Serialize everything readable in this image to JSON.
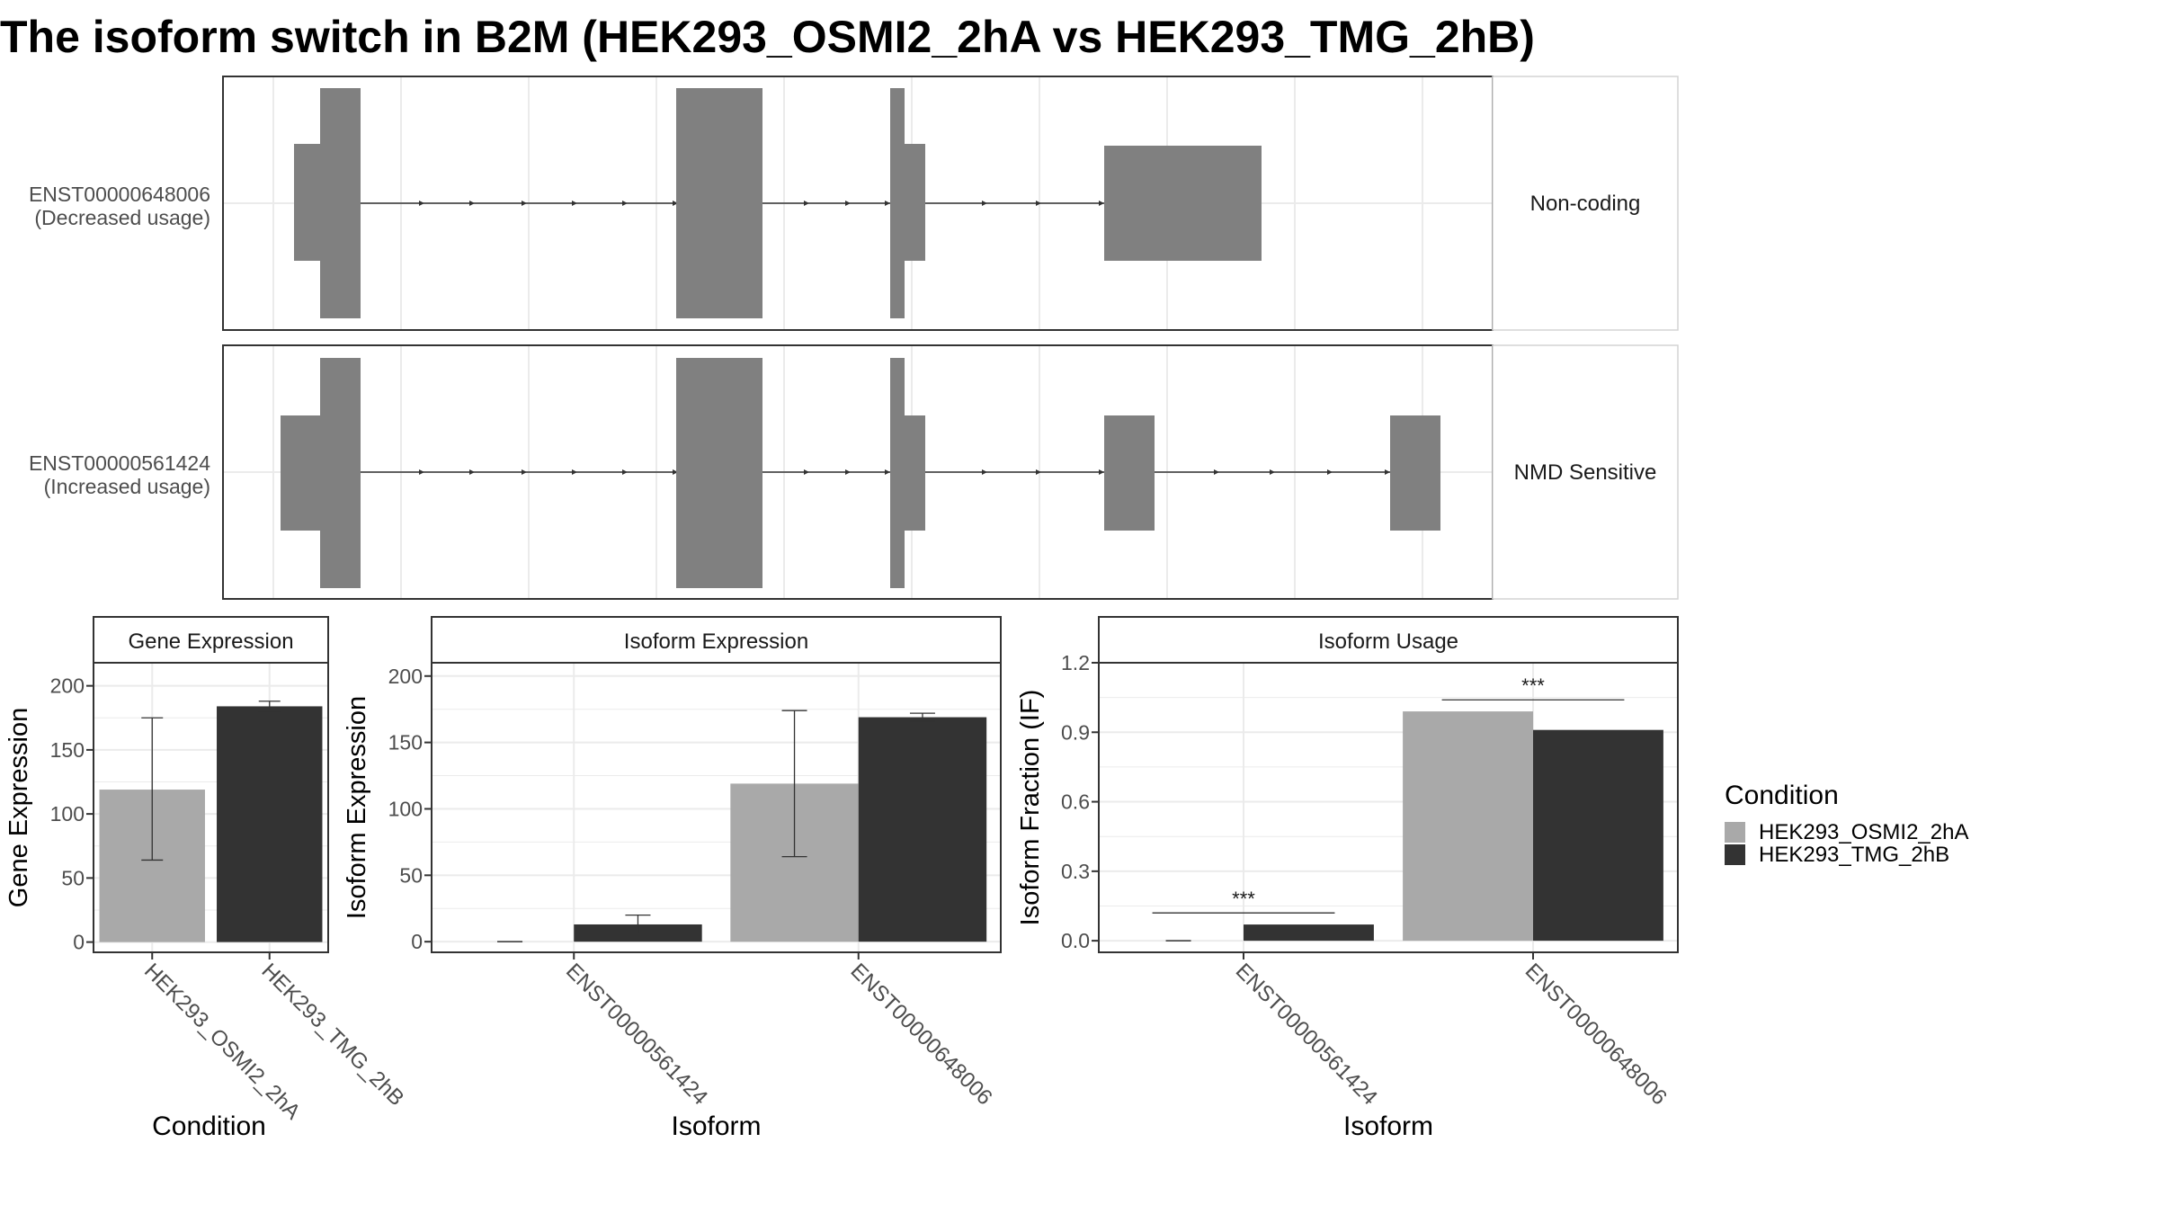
{
  "title": "The isoform switch in B2M (HEK293_OSMI2_2hA vs HEK293_TMG_2hB)",
  "colors": {
    "condition_a": "#A9A9A9",
    "condition_b": "#333333",
    "exon": "#808080",
    "intron_line": "#333333",
    "grid": "#EBEBEB",
    "panel_border": "#333333",
    "strip_bg": "#FFFFFF"
  },
  "legend": {
    "title": "Condition",
    "items": [
      {
        "label": "HEK293_OSMI2_2hA",
        "color": "#A9A9A9"
      },
      {
        "label": "HEK293_TMG_2hB",
        "color": "#333333"
      }
    ]
  },
  "chart_data": [
    {
      "type": "other",
      "name": "isoform structures",
      "tracks": [
        {
          "id": "ENST00000648006",
          "label_line1": "ENST00000648006",
          "label_line2": "(Decreased usage)",
          "category": "Non-coding"
        },
        {
          "id": "ENST00000561424",
          "label_line1": "ENST00000561424",
          "label_line2": "(Increased usage)",
          "category": "NMD Sensitive"
        }
      ]
    },
    {
      "type": "bar",
      "strip": "Gene Expression",
      "xlabel": "Condition",
      "ylabel": "Gene Expression",
      "ylim": [
        -8,
        218
      ],
      "yticks": [
        0,
        50,
        100,
        150,
        200
      ],
      "grid": true,
      "categories": [
        "HEK293_OSMI2_2hA",
        "HEK293_TMG_2hB"
      ],
      "values": [
        119,
        184
      ],
      "errors": [
        [
          64,
          175
        ],
        [
          180,
          188
        ]
      ]
    },
    {
      "type": "bar",
      "strip": "Isoform Expression",
      "xlabel": "Isoform",
      "ylabel": "Isoform Expression",
      "ylim": [
        -8,
        210
      ],
      "yticks": [
        0,
        50,
        100,
        150,
        200
      ],
      "grid": true,
      "categories": [
        "ENST00000561424",
        "ENST00000648006"
      ],
      "series": [
        {
          "name": "HEK293_OSMI2_2hA",
          "values": [
            0,
            119
          ],
          "errors": [
            [
              0,
              0
            ],
            [
              64,
              174
            ]
          ]
        },
        {
          "name": "HEK293_TMG_2hB",
          "values": [
            13,
            169
          ],
          "errors": [
            [
              6,
              20
            ],
            [
              166,
              172
            ]
          ]
        }
      ]
    },
    {
      "type": "bar",
      "strip": "Isoform Usage",
      "xlabel": "Isoform",
      "ylabel": "Isoform Fraction (IF)",
      "ylim": [
        -0.05,
        1.2
      ],
      "yticks": [
        "0.0",
        "0.3",
        "0.6",
        "0.9",
        "1.2"
      ],
      "grid": true,
      "categories": [
        "ENST00000561424",
        "ENST00000648006"
      ],
      "series": [
        {
          "name": "HEK293_OSMI2_2hA",
          "values": [
            0.0,
            0.99
          ]
        },
        {
          "name": "HEK293_TMG_2hB",
          "values": [
            0.07,
            0.91
          ]
        }
      ],
      "annotations": [
        {
          "category": "ENST00000561424",
          "text": "***",
          "y": 0.12
        },
        {
          "category": "ENST00000648006",
          "text": "***",
          "y": 1.04
        }
      ]
    }
  ]
}
